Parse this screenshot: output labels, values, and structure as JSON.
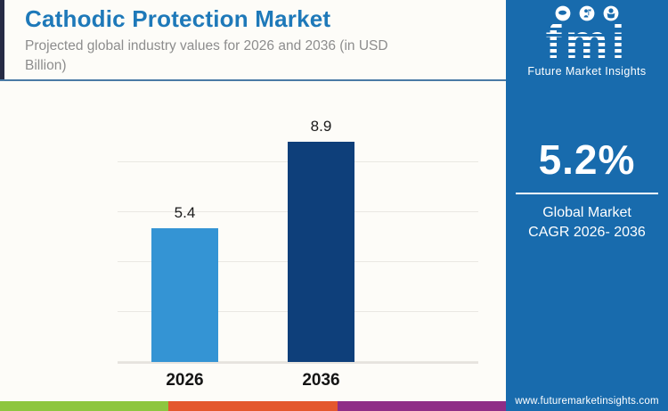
{
  "header": {
    "title": "Cathodic Protection Market",
    "subtitle": "Projected global industry values for 2026 and 2036 (in USD Billion)"
  },
  "chart_data": {
    "type": "bar",
    "title": "Cathodic Protection Market",
    "subtitle": "Projected global industry values for 2026 and 2036 (in USD Billion)",
    "categories": [
      "2026",
      "2036"
    ],
    "values": [
      5.4,
      8.9
    ],
    "unit": "USD Billion",
    "xlabel": "",
    "ylabel": "",
    "ylim": [
      0,
      10
    ],
    "gridline_step": 2,
    "grid": true,
    "legend": false,
    "bar_colors": [
      "#3494d4",
      "#0e3f7a"
    ]
  },
  "sidebar": {
    "background": "#186bad",
    "logo": {
      "text": "fmi",
      "tagline": "Future Market Insights",
      "icons": [
        "map-icon",
        "person-flag-icon",
        "person-globe-icon"
      ]
    },
    "cagr": {
      "value": "5.2%",
      "label_line1": "Global Market",
      "label_line2": "CAGR 2026- 2036"
    },
    "website": "www.futuremarketinsights.com"
  },
  "footer_stripe": {
    "colors": [
      "#8dc63f",
      "#e4572e",
      "#8f2d87"
    ]
  },
  "accent": {
    "title_color": "#1e79b9",
    "left_bar_color": "#262b45",
    "divider_color": "#4a7aa5"
  }
}
